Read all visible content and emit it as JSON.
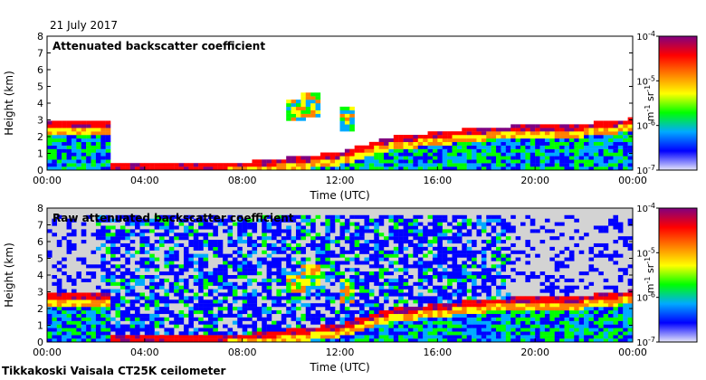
{
  "date": "21 July 2017",
  "footer": "Tikkakoski Vaisala CT25K ceilometer",
  "colors": {
    "background_fill": "#d3d3d3",
    "scale": [
      "#e6e6fa",
      "#0000ff",
      "#00aaff",
      "#00ff00",
      "#ffff00",
      "#ff8000",
      "#ff0000",
      "#800080"
    ]
  },
  "chart_data": [
    {
      "type": "heatmap",
      "title": "Attenuated backscatter coefficient",
      "xlabel": "Time (UTC)",
      "ylabel": "Height (km)",
      "x_ticks": [
        "00:00",
        "04:00",
        "08:00",
        "12:00",
        "16:00",
        "20:00",
        "00:00"
      ],
      "y_ticks": [
        "0",
        "1",
        "2",
        "3",
        "4",
        "5",
        "6",
        "7",
        "8"
      ],
      "xlim": [
        0,
        24
      ],
      "ylim": [
        0,
        8
      ],
      "colorbar": {
        "label": "m-1 sr-1",
        "label_text": "m",
        "label_sup1": "-1",
        "label_mid": " sr",
        "label_sup2": "-1",
        "base": "10",
        "ticks": [
          {
            "exp": -4,
            "sup": "-4"
          },
          {
            "exp": -5,
            "sup": "-5"
          },
          {
            "exp": -6,
            "sup": "-6"
          },
          {
            "exp": -7,
            "sup": "-7"
          }
        ]
      },
      "features": {
        "cloud_layer_km": [
          [
            0,
            2.8
          ],
          [
            2.5,
            2.7
          ],
          [
            2.5,
            0.15
          ],
          [
            8,
            0.3
          ],
          [
            12,
            0.9
          ],
          [
            14,
            1.8
          ],
          [
            18,
            2.4
          ],
          [
            22,
            2.6
          ],
          [
            24,
            2.9
          ]
        ],
        "mid_clouds": [
          [
            10.2,
            3.6
          ],
          [
            10.8,
            3.9
          ],
          [
            12.3,
            3.0
          ]
        ],
        "noise": false
      }
    },
    {
      "type": "heatmap",
      "title": "Raw attenuated backscatter coefficient",
      "xlabel": "Time (UTC)",
      "ylabel": "Height (km)",
      "x_ticks": [
        "00:00",
        "04:00",
        "08:00",
        "12:00",
        "16:00",
        "20:00",
        "00:00"
      ],
      "y_ticks": [
        "0",
        "1",
        "2",
        "3",
        "4",
        "5",
        "6",
        "7",
        "8"
      ],
      "xlim": [
        0,
        24
      ],
      "ylim": [
        0,
        8
      ],
      "colorbar": {
        "label": "m-1 sr-1",
        "label_text": "m",
        "label_sup1": "-1",
        "label_mid": " sr",
        "label_sup2": "-1",
        "base": "10",
        "ticks": [
          {
            "exp": -4,
            "sup": "-4"
          },
          {
            "exp": -5,
            "sup": "-5"
          },
          {
            "exp": -6,
            "sup": "-6"
          },
          {
            "exp": -7,
            "sup": "-7"
          }
        ]
      },
      "features": {
        "cloud_layer_km": [
          [
            0,
            2.8
          ],
          [
            2.5,
            2.7
          ],
          [
            2.5,
            0.15
          ],
          [
            8,
            0.3
          ],
          [
            12,
            0.9
          ],
          [
            14,
            1.8
          ],
          [
            18,
            2.4
          ],
          [
            22,
            2.6
          ],
          [
            24,
            2.9
          ]
        ],
        "mid_clouds": [
          [
            10.2,
            3.6
          ],
          [
            10.8,
            3.9
          ],
          [
            12.3,
            3.0
          ]
        ],
        "noise": true
      }
    }
  ]
}
